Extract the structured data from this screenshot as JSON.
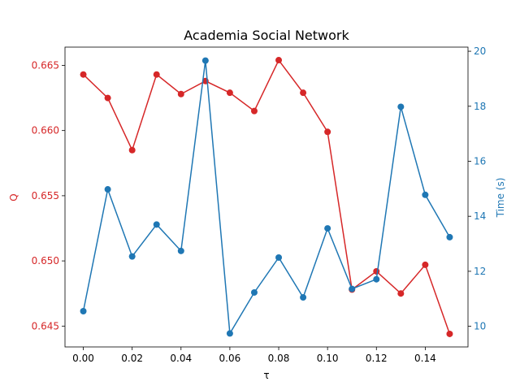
{
  "chart_data": {
    "type": "line",
    "title": "Academia Social Network",
    "xlabel": "τ",
    "x": [
      0.0,
      0.01,
      0.02,
      0.03,
      0.04,
      0.05,
      0.06,
      0.07,
      0.08,
      0.09,
      0.1,
      0.11,
      0.12,
      0.13,
      0.14,
      0.15
    ],
    "xlim": [
      -0.0075,
      0.1575
    ],
    "xticks": [
      "0.00",
      "0.02",
      "0.04",
      "0.06",
      "0.08",
      "0.10",
      "0.12",
      "0.14"
    ],
    "xtick_values": [
      0.0,
      0.02,
      0.04,
      0.06,
      0.08,
      0.1,
      0.12,
      0.14
    ],
    "grid": false,
    "series": [
      {
        "name": "Q",
        "axis": "left",
        "color": "#d62728",
        "values": [
          0.6643,
          0.6625,
          0.6585,
          0.6643,
          0.6628,
          0.6638,
          0.6629,
          0.6615,
          0.6654,
          0.6629,
          0.6599,
          0.6478,
          0.6492,
          0.6475,
          0.6497,
          0.6444
        ]
      },
      {
        "name": "Time (s)",
        "axis": "right",
        "color": "#1f77b4",
        "values": [
          10.55,
          14.98,
          12.54,
          13.7,
          12.74,
          19.66,
          9.74,
          11.23,
          12.5,
          11.05,
          13.56,
          11.36,
          11.71,
          17.98,
          14.78,
          13.24
        ]
      }
    ],
    "y_left": {
      "label": "Q",
      "color": "#d62728",
      "ylim": [
        0.6434,
        0.6664
      ],
      "ticks": [
        "0.645",
        "0.650",
        "0.655",
        "0.660",
        "0.665"
      ],
      "tick_values": [
        0.645,
        0.65,
        0.655,
        0.66,
        0.665
      ]
    },
    "y_right": {
      "label": "Time (s)",
      "color": "#1f77b4",
      "ylim": [
        9.25,
        20.15
      ],
      "ticks": [
        "10",
        "12",
        "14",
        "16",
        "18",
        "20"
      ],
      "tick_values": [
        10,
        12,
        14,
        16,
        18,
        20
      ]
    }
  }
}
